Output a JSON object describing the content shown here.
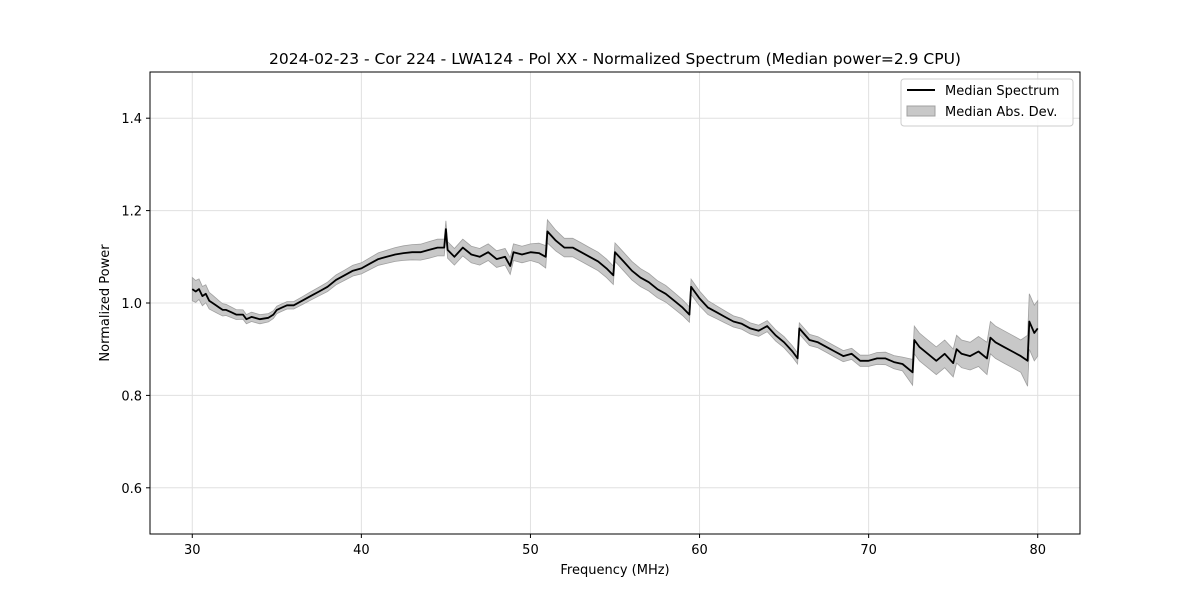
{
  "chart_data": {
    "type": "line",
    "title": "2024-02-23 - Cor 224 - LWA124 - Pol XX - Normalized Spectrum (Median power=2.9 CPU)",
    "xlabel": "Frequency (MHz)",
    "ylabel": "Normalized Power",
    "xlim": [
      27.5,
      82.5
    ],
    "ylim": [
      0.5,
      1.5
    ],
    "xticks": [
      30,
      40,
      50,
      60,
      70,
      80
    ],
    "yticks": [
      0.6,
      0.8,
      1.0,
      1.2,
      1.4
    ],
    "grid": true,
    "legend_position": "top-right",
    "colors": {
      "line": "#000000",
      "band": "#c8c8c8",
      "band_edge": "#a0a0a0",
      "grid": "#e0e0e0"
    },
    "series": [
      {
        "name": "Median Spectrum",
        "kind": "line",
        "x": [
          30.0,
          30.2,
          30.4,
          30.6,
          30.8,
          31.0,
          31.2,
          31.4,
          31.6,
          31.8,
          32.0,
          32.3,
          32.6,
          33.0,
          33.2,
          33.5,
          34.0,
          34.5,
          34.8,
          35.0,
          35.3,
          35.6,
          36.0,
          36.5,
          37.0,
          37.5,
          38.0,
          38.5,
          39.0,
          39.5,
          40.0,
          40.5,
          41.0,
          41.5,
          42.0,
          42.5,
          43.0,
          43.5,
          44.0,
          44.5,
          44.9,
          45.0,
          45.1,
          45.5,
          46.0,
          46.5,
          47.0,
          47.5,
          48.0,
          48.5,
          48.8,
          49.0,
          49.5,
          50.0,
          50.5,
          50.9,
          51.0,
          51.5,
          52.0,
          52.5,
          53.0,
          53.5,
          54.0,
          54.5,
          54.9,
          55.0,
          55.5,
          56.0,
          56.5,
          57.0,
          57.5,
          58.0,
          58.5,
          59.0,
          59.4,
          59.5,
          60.0,
          60.5,
          61.0,
          61.5,
          62.0,
          62.5,
          63.0,
          63.5,
          64.0,
          64.5,
          65.0,
          65.5,
          65.8,
          65.9,
          66.5,
          67.0,
          67.5,
          68.0,
          68.5,
          69.0,
          69.5,
          70.0,
          70.5,
          71.0,
          71.5,
          72.0,
          72.6,
          72.7,
          73.0,
          73.5,
          74.0,
          74.5,
          75.0,
          75.2,
          75.5,
          76.0,
          76.5,
          77.0,
          77.2,
          77.5,
          78.0,
          78.5,
          79.0,
          79.4,
          79.5,
          79.8,
          80.0
        ],
        "values": [
          1.03,
          1.025,
          1.03,
          1.015,
          1.02,
          1.005,
          1.0,
          0.995,
          0.99,
          0.985,
          0.985,
          0.98,
          0.975,
          0.975,
          0.965,
          0.97,
          0.965,
          0.968,
          0.975,
          0.985,
          0.99,
          0.995,
          0.995,
          1.005,
          1.015,
          1.025,
          1.035,
          1.05,
          1.06,
          1.07,
          1.075,
          1.085,
          1.095,
          1.1,
          1.105,
          1.108,
          1.11,
          1.11,
          1.115,
          1.12,
          1.12,
          1.16,
          1.115,
          1.1,
          1.12,
          1.105,
          1.1,
          1.11,
          1.095,
          1.1,
          1.08,
          1.11,
          1.105,
          1.11,
          1.108,
          1.1,
          1.155,
          1.135,
          1.12,
          1.12,
          1.11,
          1.1,
          1.09,
          1.075,
          1.06,
          1.11,
          1.09,
          1.07,
          1.055,
          1.045,
          1.03,
          1.02,
          1.005,
          0.99,
          0.975,
          1.035,
          1.01,
          0.99,
          0.98,
          0.97,
          0.96,
          0.955,
          0.945,
          0.94,
          0.95,
          0.93,
          0.915,
          0.895,
          0.88,
          0.945,
          0.92,
          0.915,
          0.905,
          0.895,
          0.885,
          0.89,
          0.875,
          0.875,
          0.88,
          0.88,
          0.872,
          0.868,
          0.85,
          0.92,
          0.905,
          0.89,
          0.875,
          0.89,
          0.87,
          0.9,
          0.89,
          0.885,
          0.895,
          0.88,
          0.925,
          0.915,
          0.905,
          0.895,
          0.885,
          0.875,
          0.96,
          0.935,
          0.945
        ]
      },
      {
        "name": "Median Abs. Dev.",
        "kind": "band",
        "x": [
          30.0,
          31.0,
          32.0,
          33.0,
          34.0,
          35.0,
          36.0,
          38.0,
          40.0,
          42.0,
          44.0,
          46.0,
          48.0,
          50.0,
          51.0,
          52.0,
          54.0,
          56.0,
          58.0,
          60.0,
          62.0,
          64.0,
          66.0,
          68.0,
          70.0,
          72.0,
          72.7,
          74.0,
          76.0,
          77.0,
          78.0,
          79.0,
          79.5,
          80.0
        ],
        "spread": [
          0.025,
          0.018,
          0.012,
          0.01,
          0.01,
          0.008,
          0.008,
          0.01,
          0.012,
          0.015,
          0.018,
          0.018,
          0.018,
          0.018,
          0.025,
          0.02,
          0.02,
          0.02,
          0.018,
          0.016,
          0.012,
          0.012,
          0.012,
          0.012,
          0.012,
          0.015,
          0.03,
          0.03,
          0.03,
          0.035,
          0.035,
          0.035,
          0.06,
          0.06
        ]
      }
    ]
  }
}
